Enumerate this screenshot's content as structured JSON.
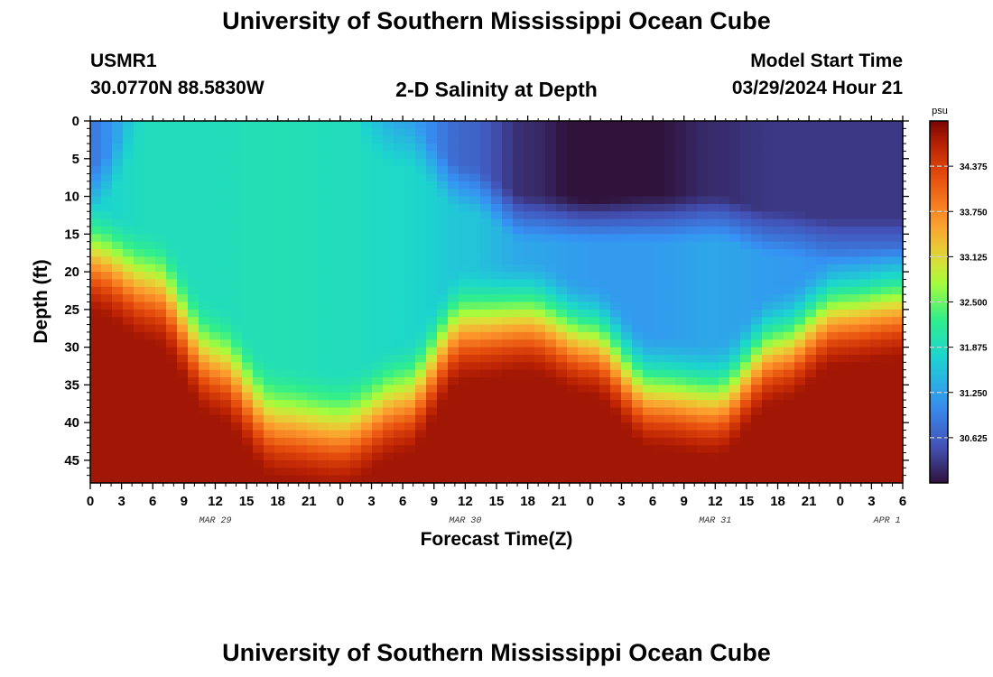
{
  "header": {
    "title": "University of Southern Mississippi Ocean Cube",
    "station": "USMR1",
    "coords": "30.0770N  88.5830W",
    "subtitle": "2-D Salinity at Depth",
    "model_start_label": "Model Start Time",
    "model_start_value": "03/29/2024 Hour 21",
    "footer_title": "University of Southern Mississippi Ocean Cube"
  },
  "chart_data": {
    "type": "heatmap",
    "title": "2-D Salinity at Depth",
    "xlabel": "Forecast Time(Z)",
    "ylabel": "Depth (ft)",
    "x_tick_labels": [
      "0",
      "3",
      "6",
      "9",
      "12",
      "15",
      "18",
      "21",
      "0",
      "3",
      "6",
      "9",
      "12",
      "15",
      "18",
      "21",
      "0",
      "3",
      "6",
      "9",
      "12",
      "15",
      "18",
      "21",
      "0",
      "3",
      "6"
    ],
    "x_range_hours": [
      0,
      78
    ],
    "day_labels": [
      {
        "label": "MAR 29",
        "hour": 12
      },
      {
        "label": "MAR 30",
        "hour": 36
      },
      {
        "label": "MAR 31",
        "hour": 60
      },
      {
        "label": "APR 1",
        "hour": 76.5
      }
    ],
    "y_ticks": [
      0,
      5,
      10,
      15,
      20,
      25,
      30,
      35,
      40,
      45
    ],
    "ylim": [
      0,
      48
    ],
    "colorbar": {
      "unit": "psu",
      "ticks": [
        "34.375",
        "33.750",
        "33.125",
        "32.500",
        "31.875",
        "31.250",
        "30.625"
      ],
      "range": [
        30.0,
        35.0
      ]
    },
    "halocline_depth_ft": {
      "hours": [
        0,
        6,
        12,
        18,
        24,
        30,
        36,
        42,
        48,
        54,
        60,
        66,
        72,
        78
      ],
      "values": [
        18,
        22,
        32,
        40,
        41,
        37,
        27,
        26,
        29,
        36,
        37,
        30,
        25,
        24
      ]
    },
    "surface_fresh_layer_depth_ft": {
      "hours": [
        0,
        6,
        12,
        18,
        24,
        30,
        36,
        42,
        48,
        54,
        60,
        66,
        72,
        78
      ],
      "values": [
        9,
        0,
        0,
        0,
        0,
        3,
        9,
        13,
        13,
        13,
        13,
        15,
        16,
        16
      ]
    },
    "surface_salinity_psu": {
      "hours": [
        0,
        6,
        12,
        18,
        24,
        30,
        36,
        42,
        48,
        54,
        60,
        66,
        72,
        78
      ],
      "values": [
        30.9,
        31.9,
        31.9,
        31.9,
        31.8,
        31.3,
        30.7,
        30.2,
        29.9,
        30.0,
        30.2,
        30.3,
        30.3,
        30.3
      ]
    },
    "mixed_layer_salinity_psu": {
      "hours": [
        0,
        6,
        12,
        18,
        24,
        30,
        36,
        42,
        48,
        54,
        60,
        66,
        72,
        78
      ],
      "values": [
        31.7,
        31.9,
        31.9,
        31.95,
        31.9,
        31.8,
        31.6,
        31.3,
        31.2,
        31.2,
        31.3,
        31.2,
        31.1,
        31.1
      ]
    },
    "bottom_salinity_psu": 34.8
  }
}
